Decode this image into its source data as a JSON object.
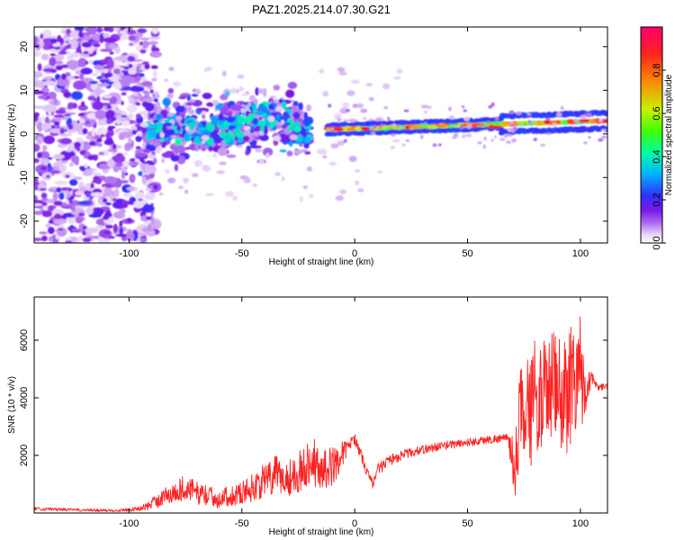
{
  "figure": {
    "title": "PAZ1.2025.214.07.30.G21"
  },
  "chart_data": [
    {
      "type": "heatmap",
      "title": "PAZ1.2025.214.07.30.G21",
      "xlabel": "Height of straight line (km)",
      "ylabel": "Frequency (Hz)",
      "xlim": [
        -142,
        112
      ],
      "ylim": [
        -25,
        24.5
      ],
      "x_ticks": [
        -100,
        -50,
        0,
        50,
        100
      ],
      "y_ticks": [
        -20,
        -10,
        0,
        10,
        20
      ],
      "grid": false,
      "colorscale": {
        "label": "Normalized spectral amplitude",
        "range": [
          0,
          1
        ],
        "ticks": [
          "0.0",
          "0.2",
          "0.4",
          "0.6",
          "0.8"
        ],
        "stops": [
          "#ffffff",
          "#e8d4f8",
          "#b070f0",
          "#7a18e8",
          "#3030ff",
          "#00b4ff",
          "#00ffa0",
          "#40ff00",
          "#c8f000",
          "#ff8000",
          "#ff2020",
          "#ff0070"
        ]
      },
      "features": [
        {
          "name": "scattered noise",
          "x_range": [
            -142,
            -88
          ],
          "freq_range": [
            -25,
            24.5
          ],
          "amplitude": 0.15
        },
        {
          "name": "diffuse signal",
          "x_range": [
            -92,
            -20
          ],
          "center_freq": 1,
          "spread_hz": 6,
          "amplitude": 0.35
        },
        {
          "name": "tone",
          "x_range": [
            -12,
            112
          ],
          "freq_start": 1,
          "freq_end": 3,
          "amplitude": 0.9
        }
      ]
    },
    {
      "type": "line",
      "xlabel": "Height of straight line (km)",
      "ylabel": "SNR (10 * v/v)",
      "xlim": [
        -142,
        112
      ],
      "ylim": [
        0,
        7500
      ],
      "x_ticks": [
        -100,
        -50,
        0,
        50,
        100
      ],
      "y_ticks": [
        2000,
        4000,
        6000
      ],
      "grid": false,
      "series": [
        {
          "color": "#ff2020",
          "x": [
            -142,
            -130,
            -120,
            -110,
            -100,
            -95,
            -90,
            -85,
            -80,
            -75,
            -70,
            -65,
            -60,
            -55,
            -50,
            -45,
            -40,
            -35,
            -30,
            -25,
            -20,
            -15,
            -10,
            -5,
            -2,
            0,
            2,
            5,
            8,
            10,
            15,
            20,
            25,
            30,
            40,
            50,
            60,
            65,
            68,
            70,
            72,
            74,
            76,
            78,
            80,
            82,
            85,
            88,
            90,
            92,
            95,
            98,
            100,
            102,
            105,
            108,
            112
          ],
          "y": [
            150,
            120,
            100,
            90,
            110,
            150,
            300,
            550,
            700,
            900,
            700,
            600,
            500,
            600,
            700,
            900,
            1100,
            1300,
            1200,
            1400,
            1800,
            1500,
            1600,
            2100,
            2400,
            2600,
            2200,
            1500,
            1000,
            1500,
            1800,
            2000,
            2100,
            2200,
            2350,
            2450,
            2550,
            2600,
            2600,
            1800,
            2000,
            3800,
            4200,
            3500,
            3800,
            4000,
            4200,
            4500,
            4000,
            3800,
            4500,
            5000,
            4800,
            4200,
            4700,
            4400,
            4400
          ],
          "variation": [
            60,
            50,
            50,
            50,
            60,
            80,
            200,
            300,
            400,
            450,
            400,
            350,
            350,
            350,
            400,
            500,
            600,
            700,
            650,
            700,
            800,
            700,
            700,
            400,
            200,
            200,
            200,
            200,
            150,
            200,
            200,
            200,
            150,
            150,
            150,
            150,
            150,
            150,
            150,
            900,
            1600,
            2000,
            1800,
            2000,
            1800,
            1800,
            1900,
            1900,
            2200,
            2300,
            2300,
            2300,
            2100,
            800,
            200,
            150,
            100
          ]
        }
      ]
    }
  ]
}
